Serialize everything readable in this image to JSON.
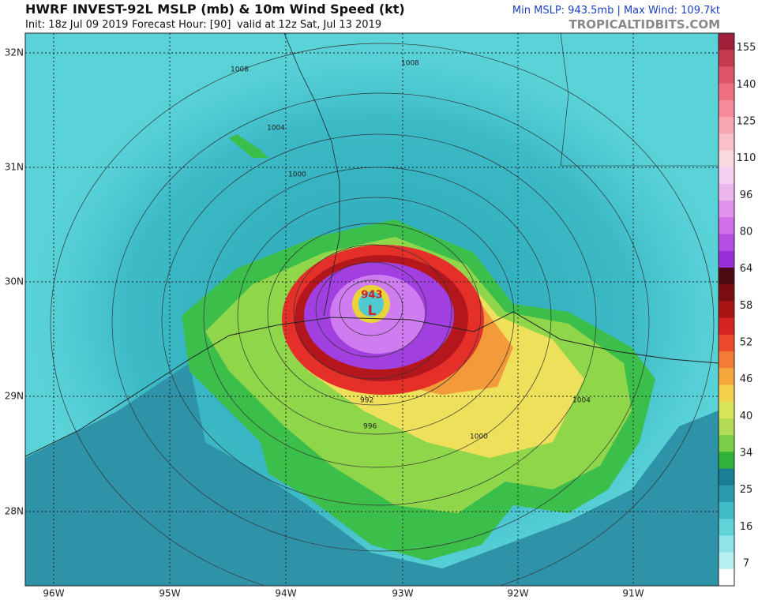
{
  "header": {
    "title": "HWRF INVEST-92L MSLP (mb) & 10m Wind Speed (kt)",
    "init": "Init: 18z Jul 09 2019",
    "forecast_hour": "Forecast Hour: [90]",
    "valid": "valid at 12z Sat, Jul 13 2019",
    "stats": "Min MSLP: 943.5mb | Max Wind: 109.7kt",
    "source": "TROPICALTIDBITS.COM"
  },
  "map": {
    "lat_labels": [
      "32N",
      "31N",
      "30N",
      "29N",
      "28N"
    ],
    "lon_labels": [
      "96W",
      "95W",
      "94W",
      "93W",
      "92W",
      "91W"
    ],
    "center_pressure": "943",
    "low_marker": "L",
    "isobar_labels": [
      "1008",
      "1008",
      "1004",
      "1000",
      "992",
      "996",
      "1000",
      "1004"
    ]
  },
  "colorbar": {
    "labels": [
      155,
      140,
      125,
      110,
      96,
      80,
      64,
      58,
      52,
      46,
      40,
      34,
      25,
      16,
      7
    ]
  }
}
